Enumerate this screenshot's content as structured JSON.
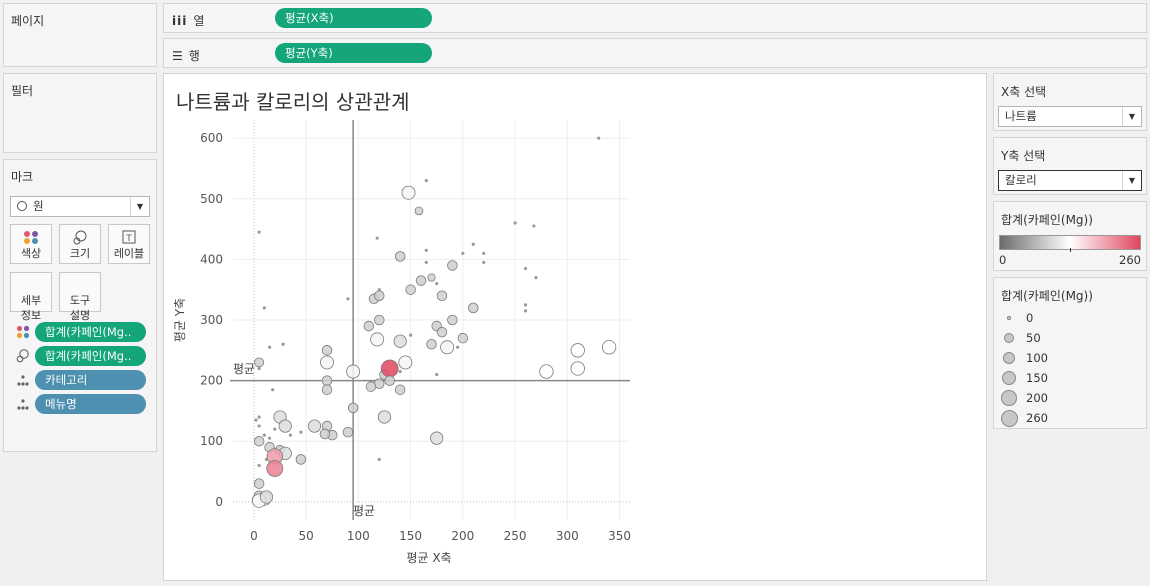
{
  "left": {
    "pages_title": "페이지",
    "filters_title": "필터",
    "marks": {
      "title": "마크",
      "mark_type": "원",
      "buttons": {
        "color": "색상",
        "size": "크기",
        "label": "레이블",
        "detail": "세부\n정보",
        "tooltip": "도구\n설명"
      },
      "fields": [
        {
          "label": "합계(카페인(Mg..",
          "kind": "color"
        },
        {
          "label": "합계(카페인(Mg..",
          "kind": "size"
        },
        {
          "label": "카테고리",
          "kind": "detail"
        },
        {
          "label": "메뉴명",
          "kind": "detail"
        }
      ]
    }
  },
  "shelves": {
    "columns_label": "열",
    "columns_pill": "평균(X축)",
    "rows_label": "행",
    "rows_pill": "평균(Y축)"
  },
  "right": {
    "x_select": {
      "title": "X축 선택",
      "value": "나트륨"
    },
    "y_select": {
      "title": "Y축 선택",
      "value": "칼로리"
    },
    "color_legend": {
      "title": "합계(카페인(Mg))",
      "min": "0",
      "max": "260",
      "colors": [
        "#6b6b6b",
        "#ffffff",
        "#e0475f"
      ]
    },
    "size_legend": {
      "title": "합계(카페인(Mg))",
      "items": [
        "0",
        "50",
        "100",
        "150",
        "200",
        "260"
      ]
    }
  },
  "chart_data": {
    "type": "scatter",
    "title": "나트륨과 칼로리의 상관관계",
    "xlabel": "평균 X축",
    "ylabel": "평균 Y축",
    "xlim": [
      -20,
      360
    ],
    "ylim": [
      -30,
      630
    ],
    "xticks": [
      "0",
      "50",
      "100",
      "150",
      "200",
      "250",
      "300",
      "350"
    ],
    "yticks": [
      "0",
      "100",
      "200",
      "300",
      "400",
      "500",
      "600"
    ],
    "reference_lines": {
      "x_mean": 95,
      "x_label": "평균",
      "y_mean": 200,
      "y_label": "평균"
    },
    "points": [
      [
        330,
        600,
        0
      ],
      [
        165,
        530,
        0
      ],
      [
        158,
        480,
        15
      ],
      [
        148,
        510,
        120
      ],
      [
        5,
        445,
        0
      ],
      [
        118,
        435,
        0
      ],
      [
        10,
        320,
        0
      ],
      [
        210,
        425,
        0
      ],
      [
        200,
        410,
        0
      ],
      [
        220,
        410,
        0
      ],
      [
        250,
        460,
        0
      ],
      [
        268,
        455,
        0
      ],
      [
        165,
        415,
        0
      ],
      [
        140,
        405,
        40
      ],
      [
        165,
        395,
        0
      ],
      [
        190,
        390,
        40
      ],
      [
        220,
        395,
        0
      ],
      [
        260,
        385,
        0
      ],
      [
        170,
        370,
        10
      ],
      [
        160,
        365,
        40
      ],
      [
        150,
        350,
        40
      ],
      [
        120,
        350,
        0
      ],
      [
        115,
        335,
        40
      ],
      [
        120,
        340,
        40
      ],
      [
        90,
        335,
        0
      ],
      [
        270,
        370,
        0
      ],
      [
        175,
        360,
        0
      ],
      [
        180,
        340,
        40
      ],
      [
        210,
        320,
        40
      ],
      [
        260,
        325,
        0
      ],
      [
        260,
        315,
        0
      ],
      [
        110,
        290,
        40
      ],
      [
        120,
        300,
        40
      ],
      [
        175,
        290,
        40
      ],
      [
        180,
        280,
        40
      ],
      [
        190,
        300,
        40
      ],
      [
        200,
        270,
        40
      ],
      [
        150,
        275,
        0
      ],
      [
        170,
        260,
        40
      ],
      [
        195,
        255,
        0
      ],
      [
        118,
        268,
        120
      ],
      [
        140,
        265,
        100
      ],
      [
        185,
        255,
        120
      ],
      [
        28,
        260,
        0
      ],
      [
        15,
        255,
        0
      ],
      [
        145,
        230,
        120
      ],
      [
        70,
        230,
        120
      ],
      [
        5,
        230,
        30
      ],
      [
        5,
        220,
        0
      ],
      [
        70,
        250,
        40
      ],
      [
        95,
        215,
        120
      ],
      [
        125,
        210,
        40
      ],
      [
        130,
        220,
        260
      ],
      [
        140,
        215,
        0
      ],
      [
        175,
        210,
        0
      ],
      [
        18,
        185,
        0
      ],
      [
        120,
        195,
        40
      ],
      [
        112,
        190,
        40
      ],
      [
        130,
        200,
        40
      ],
      [
        140,
        185,
        40
      ],
      [
        70,
        200,
        40
      ],
      [
        70,
        185,
        40
      ],
      [
        280,
        215,
        130
      ],
      [
        310,
        220,
        130
      ],
      [
        310,
        250,
        130
      ],
      [
        340,
        255,
        130
      ],
      [
        95,
        155,
        40
      ],
      [
        125,
        140,
        100
      ],
      [
        25,
        140,
        100
      ],
      [
        30,
        125,
        100
      ],
      [
        58,
        125,
        100
      ],
      [
        90,
        115,
        40
      ],
      [
        70,
        125,
        40
      ],
      [
        75,
        110,
        40
      ],
      [
        68,
        112,
        40
      ],
      [
        45,
        115,
        0
      ],
      [
        5,
        125,
        0
      ],
      [
        20,
        120,
        0
      ],
      [
        5,
        100,
        40
      ],
      [
        15,
        90,
        40
      ],
      [
        25,
        85,
        40
      ],
      [
        30,
        80,
        100
      ],
      [
        45,
        70,
        40
      ],
      [
        20,
        75,
        200
      ],
      [
        20,
        55,
        220
      ],
      [
        5,
        30,
        40
      ],
      [
        5,
        10,
        40
      ],
      [
        10,
        5,
        120
      ],
      [
        3,
        3,
        40
      ],
      [
        5,
        60,
        0
      ],
      [
        12,
        70,
        0
      ],
      [
        15,
        105,
        0
      ],
      [
        10,
        110,
        0
      ],
      [
        35,
        110,
        0
      ],
      [
        5,
        140,
        0
      ],
      [
        2,
        135,
        0
      ],
      [
        5,
        2,
        130
      ],
      [
        12,
        8,
        100
      ],
      [
        175,
        105,
        100
      ],
      [
        120,
        70,
        0
      ]
    ]
  }
}
